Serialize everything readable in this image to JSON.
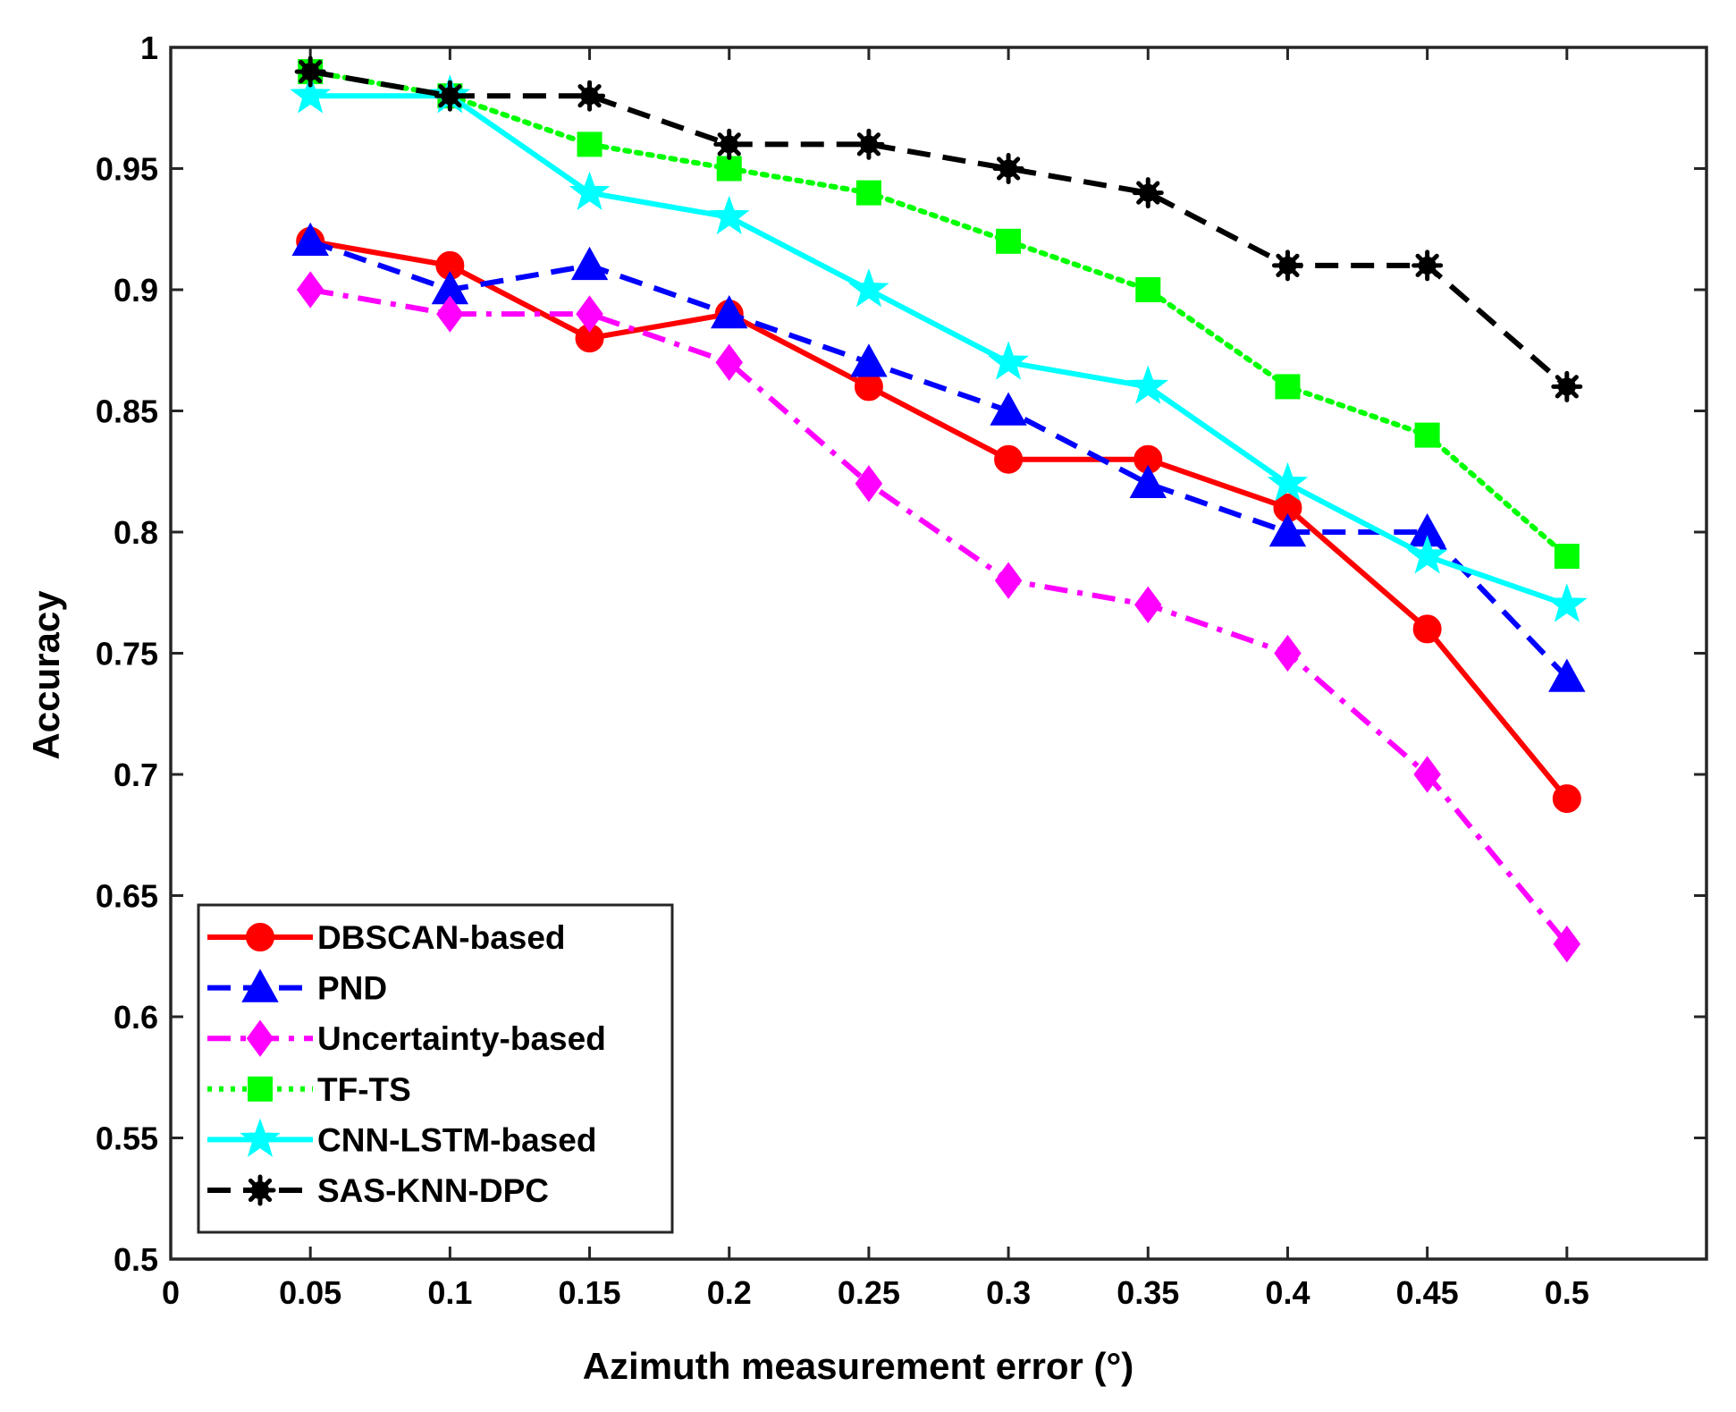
{
  "chart_data": {
    "type": "line",
    "xlabel": "Azimuth measurement error (°)",
    "ylabel": "Accuracy",
    "xlim": [
      0,
      0.55
    ],
    "ylim": [
      0.5,
      1
    ],
    "x_ticks": [
      "0",
      "0.05",
      "0.1",
      "0.15",
      "0.2",
      "0.25",
      "0.3",
      "0.35",
      "0.4",
      "0.45",
      "0.5"
    ],
    "y_ticks": [
      "0.5",
      "0.55",
      "0.6",
      "0.65",
      "0.7",
      "0.75",
      "0.8",
      "0.85",
      "0.9",
      "0.95",
      "1"
    ],
    "x": [
      0.05,
      0.1,
      0.15,
      0.2,
      0.25,
      0.3,
      0.35,
      0.4,
      0.45,
      0.5
    ],
    "grid": false,
    "legend_position": "bottom-left",
    "series": [
      {
        "name": "DBSCAN-based",
        "color": "#ff0000",
        "line_style": "solid",
        "marker": "circle",
        "values": [
          0.92,
          0.91,
          0.88,
          0.89,
          0.86,
          0.83,
          0.83,
          0.81,
          0.76,
          0.69
        ]
      },
      {
        "name": "PND",
        "color": "#0000ff",
        "line_style": "dashed",
        "marker": "triangle",
        "values": [
          0.92,
          0.9,
          0.91,
          0.89,
          0.87,
          0.85,
          0.82,
          0.8,
          0.8,
          0.74
        ]
      },
      {
        "name": "Uncertainty-based",
        "color": "#ff00ff",
        "line_style": "dashdot",
        "marker": "diamond",
        "values": [
          0.9,
          0.89,
          0.89,
          0.87,
          0.82,
          0.78,
          0.77,
          0.75,
          0.7,
          0.63
        ]
      },
      {
        "name": "TF-TS",
        "color": "#00ff00",
        "line_style": "dotted",
        "marker": "square",
        "values": [
          0.99,
          0.98,
          0.96,
          0.95,
          0.94,
          0.92,
          0.9,
          0.86,
          0.84,
          0.79
        ]
      },
      {
        "name": "CNN-LSTM-based",
        "color": "#00ffff",
        "line_style": "solid",
        "marker": "star",
        "values": [
          0.98,
          0.98,
          0.94,
          0.93,
          0.9,
          0.87,
          0.86,
          0.82,
          0.79,
          0.77
        ]
      },
      {
        "name": "SAS-KNN-DPC",
        "color": "#000000",
        "line_style": "dashed",
        "marker": "asterisk",
        "values": [
          0.99,
          0.98,
          0.98,
          0.96,
          0.96,
          0.95,
          0.94,
          0.91,
          0.91,
          0.86
        ]
      }
    ]
  }
}
